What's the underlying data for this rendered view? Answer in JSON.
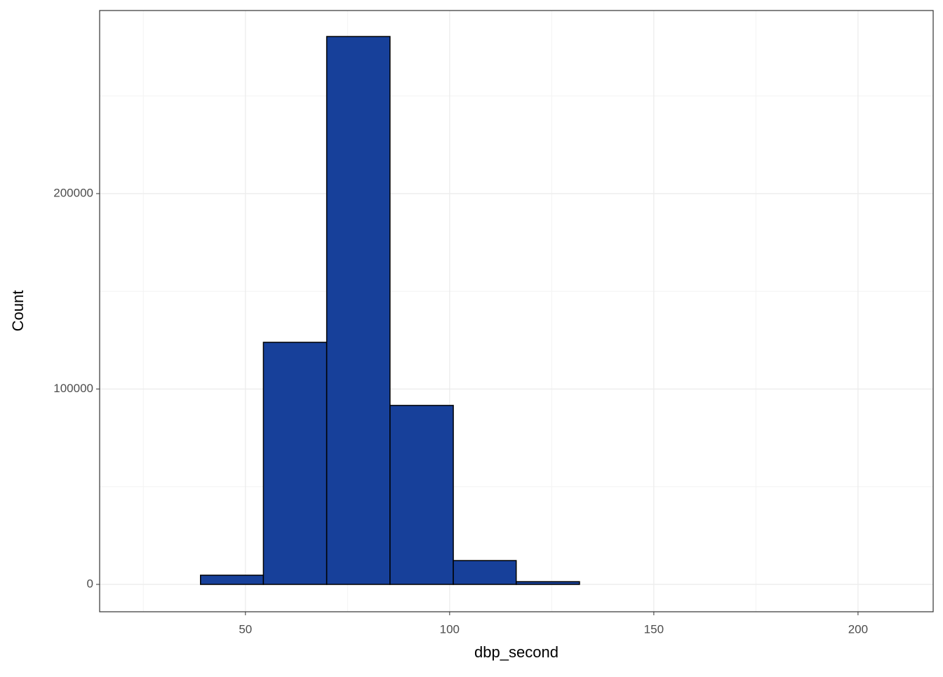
{
  "chart_data": {
    "type": "histogram",
    "x_label": "dbp_second",
    "y_label": "Count",
    "bins": [
      23.5,
      39.0,
      54.4,
      69.9,
      85.4,
      100.9,
      116.3,
      131.8,
      147.3,
      162.7,
      178.2,
      193.7,
      209.1
    ],
    "values": [
      0,
      4700,
      123900,
      280400,
      91600,
      12200,
      1400,
      0,
      0,
      0,
      0,
      0
    ],
    "color": "#17409a",
    "edge_color": "#000000",
    "xlim": [
      14.3,
      218.4
    ],
    "ylim": [
      -14000,
      293700
    ],
    "xticks": [
      50,
      100,
      150,
      200
    ],
    "yticks": [
      0,
      100000,
      200000
    ],
    "minor_xticks": [
      25,
      75,
      125,
      175
    ],
    "minor_yticks": [
      50000,
      150000,
      250000
    ],
    "grid": true
  }
}
